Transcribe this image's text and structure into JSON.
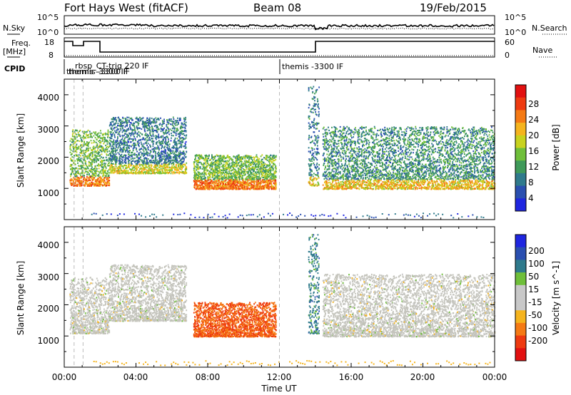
{
  "header": {
    "station": "Fort Hays West (fitACF)",
    "beam": "Beam 08",
    "date": "19/Feb/2015"
  },
  "sky_panel": {
    "left_label": "N.Sky",
    "right_label": "N.Search",
    "left_ticks": [
      "10^5",
      "10^0"
    ],
    "right_ticks": [
      "10^5",
      "10^0"
    ]
  },
  "freq_panel": {
    "left_label_1": "Freq.",
    "left_label_2": "[MHz]",
    "right_label": "Nave",
    "left_ticks": [
      "18",
      "8"
    ],
    "right_ticks": [
      "60",
      "0"
    ]
  },
  "cpid": {
    "label": "CPID",
    "entries": [
      "rbsp_CT-trig 220 IF",
      "themis -3300 IF",
      "themis -3300 IF",
      "themis -3300 IF"
    ]
  },
  "colors": {
    "power_scale": [
      "#1f26e0",
      "#2a4fb0",
      "#2f7a8c",
      "#3f9a5a",
      "#6fbf3a",
      "#c8d21e",
      "#f5b41e",
      "#f57a14",
      "#ee3a10",
      "#e21010"
    ],
    "velocity_scale": [
      "#1f26e0",
      "#2a4fb0",
      "#2f7a8c",
      "#6fbf3a",
      "#c8c8c8",
      "#c8c8c8",
      "#f5b41e",
      "#f57a14",
      "#ee3a10",
      "#e21010"
    ],
    "ground_scatter": "#c4c4bc"
  },
  "chart_data": [
    {
      "type": "heatmap",
      "title": "",
      "xlabel": "",
      "ylabel": "Slant Range [km]",
      "xlim": [
        "00:00",
        "24:00"
      ],
      "ylim": [
        0,
        4500
      ],
      "y_ticks": [
        "1000",
        "2000",
        "3000",
        "4000"
      ],
      "colorbar": {
        "label": "Power [dB]",
        "range": [
          0,
          32
        ],
        "ticks": [
          "4",
          "8",
          "12",
          "16",
          "20",
          "24",
          "28"
        ]
      },
      "echo_regions": [
        {
          "t_start_h": 0.3,
          "t_end_h": 2.5,
          "range_km": [
            1100,
            2900
          ],
          "typical_power_db": 14
        },
        {
          "t_start_h": 2.5,
          "t_end_h": 6.8,
          "range_km": [
            1500,
            3300
          ],
          "typical_power_db": 8
        },
        {
          "t_start_h": 7.2,
          "t_end_h": 11.8,
          "range_km": [
            1000,
            2100
          ],
          "typical_power_db": 14
        },
        {
          "t_start_h": 13.6,
          "t_end_h": 14.2,
          "range_km": [
            1100,
            4300
          ],
          "typical_power_db": 8
        },
        {
          "t_start_h": 14.4,
          "t_end_h": 24.0,
          "range_km": [
            1000,
            3000
          ],
          "typical_power_db": 10
        }
      ]
    },
    {
      "type": "heatmap",
      "title": "",
      "xlabel": "Time UT",
      "ylabel": "Slant Range [km]",
      "xlim": [
        "00:00",
        "24:00"
      ],
      "ylim": [
        0,
        4500
      ],
      "x_ticks": [
        "00:00",
        "04:00",
        "08:00",
        "12:00",
        "16:00",
        "20:00",
        "00:00"
      ],
      "y_ticks": [
        "1000",
        "2000",
        "3000",
        "4000"
      ],
      "colorbar": {
        "label": "Velocity [m s^-1]",
        "ticks": [
          "200",
          "100",
          "50",
          "15",
          "-15",
          "-50",
          "-100",
          "-200"
        ]
      },
      "echo_regions": [
        {
          "t_start_h": 0.3,
          "t_end_h": 2.5,
          "range_km": [
            1100,
            2900
          ],
          "typical_velocity": 0
        },
        {
          "t_start_h": 2.5,
          "t_end_h": 6.8,
          "range_km": [
            1500,
            3300
          ],
          "typical_velocity": 0
        },
        {
          "t_start_h": 7.2,
          "t_end_h": 11.8,
          "range_km": [
            1000,
            2100
          ],
          "typical_velocity": -100
        },
        {
          "t_start_h": 13.6,
          "t_end_h": 14.2,
          "range_km": [
            1100,
            4300
          ],
          "typical_velocity": 50
        },
        {
          "t_start_h": 14.4,
          "t_end_h": 24.0,
          "range_km": [
            1000,
            3000
          ],
          "typical_velocity": 0
        }
      ]
    }
  ]
}
